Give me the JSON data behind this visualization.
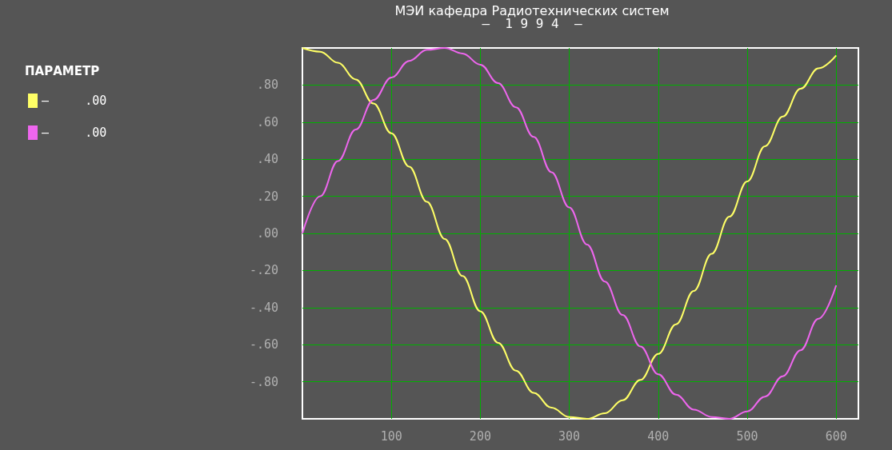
{
  "chart_data": {
    "type": "line",
    "title": "МЭИ кафедра Радиотехнических систем",
    "subtitle": "–  1 9 9 4  –",
    "legend_title": "ПАРАМЕТР",
    "x": [
      0,
      20,
      40,
      60,
      80,
      100,
      120,
      140,
      160,
      180,
      200,
      220,
      240,
      260,
      280,
      300,
      320,
      340,
      360,
      380,
      400,
      420,
      440,
      460,
      480,
      500,
      520,
      540,
      560,
      580,
      600
    ],
    "series": [
      {
        "name": "–     .00",
        "color": "#ffff66",
        "values": [
          1,
          0.98,
          0.92,
          0.83,
          0.7,
          0.54,
          0.36,
          0.17,
          -0.03,
          -0.23,
          -0.42,
          -0.59,
          -0.74,
          -0.86,
          -0.94,
          -0.99,
          -1.0,
          -0.97,
          -0.9,
          -0.79,
          -0.65,
          -0.49,
          -0.31,
          -0.11,
          0.09,
          0.28,
          0.47,
          0.63,
          0.78,
          0.89,
          0.96
        ]
      },
      {
        "name": "–     .00",
        "color": "#ee66ee",
        "values": [
          0,
          0.2,
          0.39,
          0.56,
          0.72,
          0.84,
          0.93,
          0.99,
          1.0,
          0.97,
          0.91,
          0.81,
          0.68,
          0.52,
          0.33,
          0.14,
          -0.06,
          -0.26,
          -0.44,
          -0.61,
          -0.76,
          -0.87,
          -0.95,
          -0.99,
          -1.0,
          -0.96,
          -0.88,
          -0.77,
          -0.63,
          -0.46,
          -0.28
        ]
      }
    ],
    "xlim": [
      0,
      625
    ],
    "xticks": [
      100,
      200,
      300,
      400,
      500,
      600
    ],
    "ylim": [
      -1,
      1
    ],
    "yticks": [
      {
        "value": -0.8,
        "label": "-.80"
      },
      {
        "value": -0.6,
        "label": "-.60"
      },
      {
        "value": -0.4,
        "label": "-.40"
      },
      {
        "value": -0.2,
        "label": "-.20"
      },
      {
        "value": 0,
        "label": ".00"
      },
      {
        "value": 0.2,
        "label": ".20"
      },
      {
        "value": 0.4,
        "label": ".40"
      },
      {
        "value": 0.6,
        "label": ".60"
      },
      {
        "value": 0.8,
        "label": ".80"
      }
    ],
    "grid": true,
    "legend": "left",
    "marker": "none",
    "line_style": "solid"
  }
}
